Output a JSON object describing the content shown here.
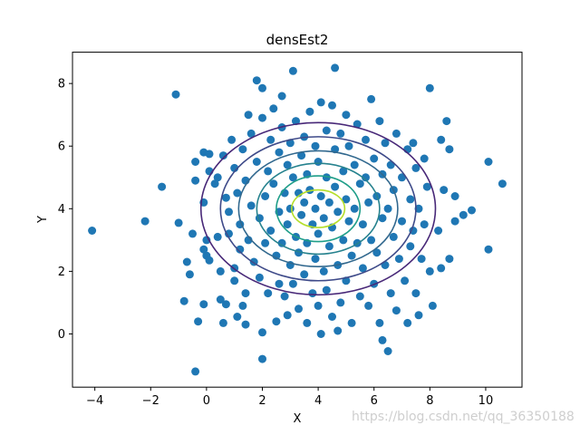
{
  "chart_data": {
    "type": "scatter",
    "title": "densEst2",
    "xlabel": "X",
    "ylabel": "Y",
    "xlim": [
      -4.8,
      11.3
    ],
    "ylim": [
      -1.7,
      9.0
    ],
    "xticks": [
      -4,
      -2,
      0,
      2,
      4,
      6,
      8,
      10
    ],
    "yticks": [
      0,
      2,
      4,
      6,
      8
    ],
    "grid": false,
    "legend": "none",
    "point_color": "#1f77b4",
    "points": [
      [
        -4.1,
        3.3
      ],
      [
        -2.2,
        3.6
      ],
      [
        -1.6,
        4.7
      ],
      [
        -1.1,
        7.65
      ],
      [
        -1.0,
        3.55
      ],
      [
        -0.8,
        1.05
      ],
      [
        -0.7,
        2.3
      ],
      [
        -0.6,
        1.9
      ],
      [
        -0.5,
        3.2
      ],
      [
        -0.4,
        5.5
      ],
      [
        -0.4,
        4.9
      ],
      [
        -0.4,
        -1.2
      ],
      [
        -0.3,
        0.4
      ],
      [
        -0.1,
        5.8
      ],
      [
        -0.1,
        4.2
      ],
      [
        -0.1,
        2.7
      ],
      [
        -0.1,
        0.95
      ],
      [
        0.0,
        3.0
      ],
      [
        0.0,
        2.5
      ],
      [
        0.1,
        5.75
      ],
      [
        0.1,
        5.2
      ],
      [
        0.1,
        2.35
      ],
      [
        0.3,
        4.8
      ],
      [
        0.4,
        5.0
      ],
      [
        0.4,
        3.1
      ],
      [
        0.5,
        2.0
      ],
      [
        0.5,
        1.1
      ],
      [
        0.6,
        5.7
      ],
      [
        0.6,
        0.35
      ],
      [
        0.7,
        4.35
      ],
      [
        0.7,
        0.95
      ],
      [
        0.8,
        3.9
      ],
      [
        0.8,
        3.2
      ],
      [
        0.9,
        6.2
      ],
      [
        1.0,
        5.3
      ],
      [
        1.0,
        2.1
      ],
      [
        1.0,
        1.7
      ],
      [
        1.1,
        4.5
      ],
      [
        1.1,
        0.55
      ],
      [
        1.2,
        3.5
      ],
      [
        1.2,
        2.7
      ],
      [
        1.3,
        5.9
      ],
      [
        1.3,
        0.9
      ],
      [
        1.4,
        4.9
      ],
      [
        1.4,
        1.3
      ],
      [
        1.4,
        0.3
      ],
      [
        1.5,
        7.0
      ],
      [
        1.5,
        3.0
      ],
      [
        1.6,
        6.4
      ],
      [
        1.6,
        4.1
      ],
      [
        1.7,
        2.3
      ],
      [
        1.8,
        8.1
      ],
      [
        1.8,
        5.5
      ],
      [
        1.9,
        3.7
      ],
      [
        1.9,
        1.8
      ],
      [
        2.0,
        7.85
      ],
      [
        2.0,
        6.9
      ],
      [
        2.0,
        0.05
      ],
      [
        2.0,
        -0.8
      ],
      [
        2.1,
        4.4
      ],
      [
        2.1,
        2.9
      ],
      [
        2.2,
        5.2
      ],
      [
        2.2,
        1.3
      ],
      [
        2.3,
        6.2
      ],
      [
        2.3,
        3.3
      ],
      [
        2.4,
        7.2
      ],
      [
        2.4,
        4.8
      ],
      [
        2.5,
        2.5
      ],
      [
        2.5,
        0.4
      ],
      [
        2.6,
        5.8
      ],
      [
        2.6,
        3.9
      ],
      [
        2.6,
        1.6
      ],
      [
        2.7,
        7.6
      ],
      [
        2.7,
        6.6
      ],
      [
        2.7,
        2.9
      ],
      [
        2.8,
        4.5
      ],
      [
        2.8,
        1.2
      ],
      [
        2.9,
        5.4
      ],
      [
        2.9,
        3.5
      ],
      [
        2.9,
        0.6
      ],
      [
        3.0,
        6.1
      ],
      [
        3.0,
        4.0
      ],
      [
        3.0,
        2.2
      ],
      [
        3.1,
        8.4
      ],
      [
        3.1,
        5.0
      ],
      [
        3.1,
        1.6
      ],
      [
        3.2,
        6.8
      ],
      [
        3.2,
        3.1
      ],
      [
        3.3,
        4.5
      ],
      [
        3.3,
        2.6
      ],
      [
        3.3,
        0.8
      ],
      [
        3.4,
        5.7
      ],
      [
        3.4,
        3.8
      ],
      [
        3.5,
        6.3
      ],
      [
        3.5,
        4.2
      ],
      [
        3.5,
        1.9
      ],
      [
        3.6,
        5.1
      ],
      [
        3.6,
        2.9
      ],
      [
        3.6,
        0.35
      ],
      [
        3.7,
        7.1
      ],
      [
        3.7,
        4.6
      ],
      [
        3.8,
        3.5
      ],
      [
        3.8,
        1.3
      ],
      [
        3.9,
        6.0
      ],
      [
        3.9,
        4.0
      ],
      [
        3.9,
        2.4
      ],
      [
        4.0,
        5.5
      ],
      [
        4.0,
        3.2
      ],
      [
        4.0,
        0.9
      ],
      [
        4.1,
        7.4
      ],
      [
        4.1,
        4.4
      ],
      [
        4.1,
        0.0
      ],
      [
        4.2,
        3.7
      ],
      [
        4.2,
        2.0
      ],
      [
        4.3,
        6.5
      ],
      [
        4.3,
        5.0
      ],
      [
        4.3,
        1.4
      ],
      [
        4.4,
        4.2
      ],
      [
        4.4,
        2.8
      ],
      [
        4.5,
        7.3
      ],
      [
        4.5,
        3.4
      ],
      [
        4.5,
        0.55
      ],
      [
        4.6,
        8.5
      ],
      [
        4.6,
        5.9
      ],
      [
        4.6,
        4.7
      ],
      [
        4.7,
        3.9
      ],
      [
        4.7,
        2.2
      ],
      [
        4.7,
        0.1
      ],
      [
        4.8,
        6.4
      ],
      [
        4.8,
        1.0
      ],
      [
        4.9,
        5.2
      ],
      [
        4.9,
        3.0
      ],
      [
        5.0,
        7.0
      ],
      [
        5.0,
        4.3
      ],
      [
        5.0,
        1.7
      ],
      [
        5.1,
        6.0
      ],
      [
        5.1,
        3.6
      ],
      [
        5.2,
        2.5
      ],
      [
        5.2,
        0.35
      ],
      [
        5.3,
        5.4
      ],
      [
        5.3,
        4.0
      ],
      [
        5.4,
        6.7
      ],
      [
        5.4,
        2.9
      ],
      [
        5.5,
        4.8
      ],
      [
        5.5,
        1.2
      ],
      [
        5.6,
        3.5
      ],
      [
        5.6,
        2.1
      ],
      [
        5.7,
        6.2
      ],
      [
        5.7,
        5.0
      ],
      [
        5.8,
        4.2
      ],
      [
        5.8,
        0.9
      ],
      [
        5.9,
        7.5
      ],
      [
        5.9,
        3.0
      ],
      [
        6.0,
        5.6
      ],
      [
        6.0,
        1.6
      ],
      [
        6.1,
        4.4
      ],
      [
        6.1,
        2.6
      ],
      [
        6.2,
        6.8
      ],
      [
        6.2,
        0.35
      ],
      [
        6.3,
        5.1
      ],
      [
        6.3,
        3.7
      ],
      [
        6.3,
        -0.2
      ],
      [
        6.4,
        6.1
      ],
      [
        6.4,
        2.2
      ],
      [
        6.5,
        4.0
      ],
      [
        6.5,
        -0.55
      ],
      [
        6.6,
        5.4
      ],
      [
        6.6,
        1.3
      ],
      [
        6.7,
        4.6
      ],
      [
        6.7,
        3.1
      ],
      [
        6.8,
        6.4
      ],
      [
        6.8,
        0.75
      ],
      [
        6.9,
        2.4
      ],
      [
        7.0,
        5.0
      ],
      [
        7.0,
        3.6
      ],
      [
        7.1,
        1.7
      ],
      [
        7.2,
        5.9
      ],
      [
        7.2,
        0.35
      ],
      [
        7.3,
        4.3
      ],
      [
        7.3,
        2.8
      ],
      [
        7.4,
        6.1
      ],
      [
        7.4,
        3.3
      ],
      [
        7.5,
        5.3
      ],
      [
        7.5,
        1.3
      ],
      [
        7.6,
        4.0
      ],
      [
        7.6,
        0.6
      ],
      [
        7.7,
        2.4
      ],
      [
        7.8,
        5.6
      ],
      [
        7.8,
        3.5
      ],
      [
        7.9,
        4.7
      ],
      [
        8.0,
        7.85
      ],
      [
        8.0,
        2.0
      ],
      [
        8.1,
        0.9
      ],
      [
        8.3,
        3.3
      ],
      [
        8.4,
        6.2
      ],
      [
        8.4,
        2.1
      ],
      [
        8.5,
        4.6
      ],
      [
        8.6,
        6.8
      ],
      [
        8.7,
        5.9
      ],
      [
        8.7,
        2.4
      ],
      [
        8.9,
        4.4
      ],
      [
        8.9,
        3.6
      ],
      [
        9.2,
        3.8
      ],
      [
        9.5,
        3.95
      ],
      [
        10.1,
        5.5
      ],
      [
        10.1,
        2.7
      ],
      [
        10.6,
        4.8
      ]
    ],
    "contours": {
      "type": "contour",
      "center": [
        4.0,
        4.0
      ],
      "levels": [
        {
          "rx": 4.2,
          "ry": 2.75,
          "color": "#482878"
        },
        {
          "rx": 3.5,
          "ry": 2.3,
          "color": "#3e4a89"
        },
        {
          "rx": 2.85,
          "ry": 1.85,
          "color": "#31688e"
        },
        {
          "rx": 2.2,
          "ry": 1.45,
          "color": "#26828e"
        },
        {
          "rx": 1.5,
          "ry": 1.05,
          "color": "#1f9e89"
        },
        {
          "rx": 0.95,
          "ry": 0.6,
          "color": "#b5de2b"
        }
      ]
    }
  },
  "watermark": "https://blog.csdn.net/qq_36350188"
}
